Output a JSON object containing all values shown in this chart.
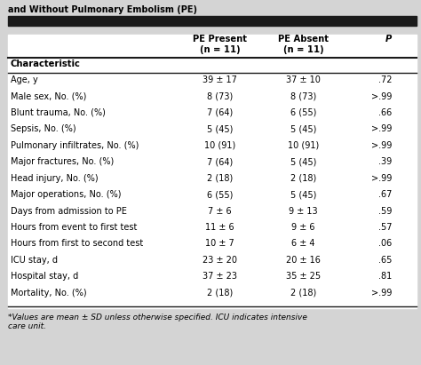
{
  "title_line1": "and Without Pulmonary Embolism (PE)",
  "col_headers": [
    "Characteristic",
    "PE Present\n(n = 11)",
    "PE Absent\n(n = 11)",
    "P"
  ],
  "rows": [
    [
      "Age, y",
      "39 ± 17",
      "37 ± 10",
      ".72"
    ],
    [
      "Male sex, No. (%)",
      "8 (73)",
      "8 (73)",
      ">.99"
    ],
    [
      "Blunt trauma, No. (%)",
      "7 (64)",
      "6 (55)",
      ".66"
    ],
    [
      "Sepsis, No. (%)",
      "5 (45)",
      "5 (45)",
      ">.99"
    ],
    [
      "Pulmonary infiltrates, No. (%)",
      "10 (91)",
      "10 (91)",
      ">.99"
    ],
    [
      "Major fractures, No. (%)",
      "7 (64)",
      "5 (45)",
      ".39"
    ],
    [
      "Head injury, No. (%)",
      "2 (18)",
      "2 (18)",
      ">.99"
    ],
    [
      "Major operations, No. (%)",
      "6 (55)",
      "5 (45)",
      ".67"
    ],
    [
      "Days from admission to PE",
      "7 ± 6",
      "9 ± 13",
      ".59"
    ],
    [
      "Hours from event to first test",
      "11 ± 6",
      "9 ± 6",
      ".57"
    ],
    [
      "Hours from first to second test",
      "10 ± 7",
      "6 ± 4",
      ".06"
    ],
    [
      "ICU stay, d",
      "23 ± 20",
      "20 ± 16",
      ".65"
    ],
    [
      "Hospital stay, d",
      "37 ± 23",
      "35 ± 25",
      ".81"
    ],
    [
      "Mortality, No. (%)",
      "2 (18)",
      "2 (18)",
      ">.99"
    ]
  ],
  "footnote": "*Values are mean ± SD unless otherwise specified. ICU indicates intensive\ncare unit.",
  "outer_bg": "#d4d4d4",
  "table_bg": "#ffffff",
  "title_bar_color": "#1a1a1a",
  "divider_color": "#1a1a1a",
  "font_size": 7.0,
  "header_font_size": 7.2,
  "footnote_font_size": 6.5
}
